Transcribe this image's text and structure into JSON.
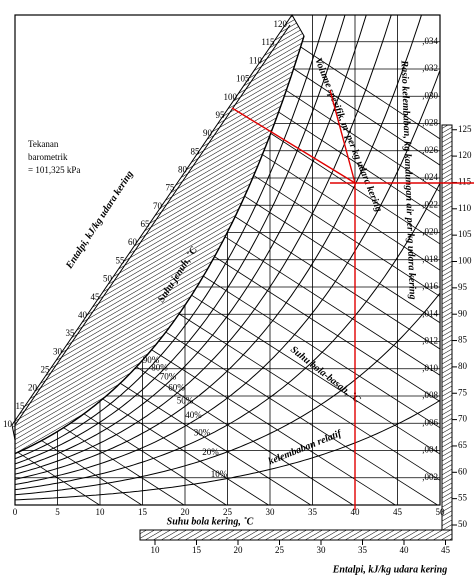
{
  "chart_data": {
    "type": "psychrometric",
    "pressure_note": [
      "Tekanan",
      "barometrik",
      "= 101,325 kPa"
    ],
    "pressure_kpa": 101.325,
    "xlabel": "Suhu bola kering, ˚C",
    "xlim": [
      0,
      50
    ],
    "xticks": [
      0,
      5,
      10,
      15,
      20,
      25,
      30,
      35,
      40,
      45,
      50
    ],
    "ylabel": "Rasio kelembaban, kg kandungan air per kg udara kering",
    "ylim": [
      0,
      0.036
    ],
    "yticks": [
      {
        "value": 0.002,
        "label": ",002"
      },
      {
        "value": 0.004,
        "label": ",004"
      },
      {
        "value": 0.006,
        "label": ",006"
      },
      {
        "value": 0.008,
        "label": ",008"
      },
      {
        "value": 0.01,
        "label": ",010"
      },
      {
        "value": 0.012,
        "label": ",012"
      },
      {
        "value": 0.014,
        "label": ",014"
      },
      {
        "value": 0.016,
        "label": ",016"
      },
      {
        "value": 0.018,
        "label": ",018"
      },
      {
        "value": 0.02,
        "label": ",020"
      },
      {
        "value": 0.022,
        "label": ",022"
      },
      {
        "value": 0.024,
        "label": ",024"
      },
      {
        "value": 0.026,
        "label": ",026"
      },
      {
        "value": 0.028,
        "label": ",028"
      },
      {
        "value": 0.03,
        "label": ",030"
      },
      {
        "value": 0.032,
        "label": ",032"
      },
      {
        "value": 0.034,
        "label": ",034"
      }
    ],
    "enthalpy_label": "Entalpi, kJ/kg udara kering",
    "enthalpy_ticks": [
      10,
      15,
      20,
      25,
      30,
      35,
      40,
      45,
      50,
      55,
      60,
      65,
      70,
      75,
      80,
      85,
      90,
      95,
      100,
      105,
      110,
      115,
      120
    ],
    "enthalpy_right_ticks": [
      50,
      55,
      60,
      65,
      70,
      75,
      80,
      85,
      90,
      95,
      100,
      105,
      110,
      115,
      120,
      125
    ],
    "enthalpy_bottom_ticks": [
      10,
      15,
      20,
      25,
      30,
      35,
      40,
      45
    ],
    "enthalpy_bottom_label": "Entalpi, kJ/kg udara kering",
    "rh_values": [
      10,
      20,
      30,
      40,
      50,
      60,
      70,
      80,
      90
    ],
    "rh_labels": [
      "10%",
      "20%",
      "30%",
      "40%",
      "50%",
      "60%",
      "70%",
      "80%",
      "90%"
    ],
    "rh_title": "kelembaban relatif",
    "saturation_label": "Suhu jenuh, ˚C",
    "wet_bulb_label": "Suhu bola-basah, ˚C",
    "volume_label": "Volume spesifik, m³ per kg udara kering"
  }
}
